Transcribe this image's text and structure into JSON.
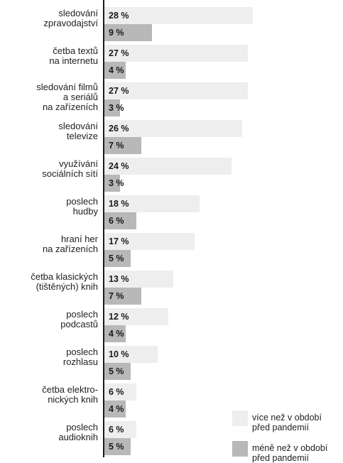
{
  "chart_data": {
    "type": "bar",
    "orientation": "horizontal",
    "categories": [
      "sledování\nzpravodajství",
      "četba textů\nna internetu",
      "sledování filmů\na seriálů\nna zařízeních",
      "sledování\ntelevize",
      "využívání\nsociálních sítí",
      "poslech\nhudby",
      "hraní her\nna zařízeních",
      "četba klasických\n(tištěných) knih",
      "poslech\npodcastů",
      "poslech\nrozhlasu",
      "četba elektro-\nnických knih",
      "poslech\naudioknih"
    ],
    "series": [
      {
        "name": "více než v období\npřed pandemií",
        "color": "#eeeeee",
        "values": [
          28,
          27,
          27,
          26,
          24,
          18,
          17,
          13,
          12,
          10,
          6,
          6
        ],
        "labels": [
          "28 %",
          "27 %",
          "27 %",
          "26 %",
          "24 %",
          "18 %",
          "17 %",
          "13 %",
          "12 %",
          "10 %",
          "6 %",
          "6 %"
        ]
      },
      {
        "name": "méně než v období\npřed pandemií",
        "color": "#b8b8b8",
        "values": [
          9,
          4,
          3,
          7,
          3,
          6,
          5,
          7,
          4,
          5,
          4,
          5
        ],
        "labels": [
          "9 %",
          "4 %",
          "3 %",
          "7 %",
          "3 %",
          "6 %",
          "5 %",
          "7 %",
          "4 %",
          "5 %",
          "4 %",
          "5 %"
        ]
      }
    ],
    "xlim": [
      0,
      28
    ],
    "legend": "bottom-right"
  }
}
